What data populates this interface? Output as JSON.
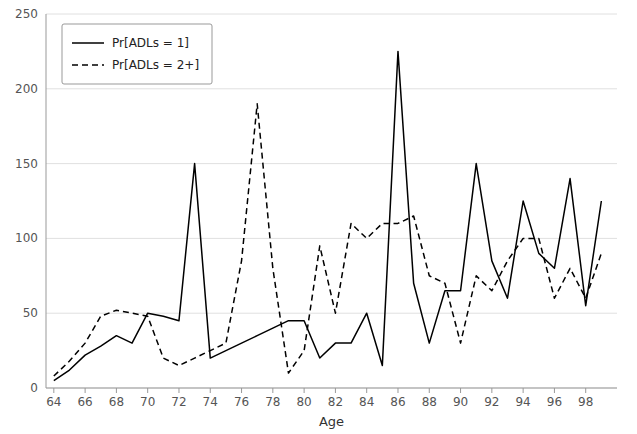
{
  "chart_data": {
    "type": "line",
    "x_label": "Age",
    "x": [
      64,
      65,
      66,
      67,
      68,
      69,
      70,
      71,
      72,
      73,
      74,
      75,
      76,
      77,
      78,
      79,
      80,
      81,
      82,
      83,
      84,
      85,
      86,
      87,
      88,
      89,
      90,
      91,
      92,
      93,
      94,
      95,
      96,
      97,
      98,
      99
    ],
    "series": [
      {
        "name": "Pr[ADLs = 1]",
        "color": "#000000",
        "line_style": "solid",
        "values": [
          5,
          12,
          22,
          28,
          35,
          30,
          50,
          48,
          45,
          150,
          20,
          25,
          30,
          35,
          40,
          45,
          45,
          20,
          30,
          30,
          50,
          15,
          225,
          70,
          30,
          65,
          65,
          150,
          85,
          60,
          125,
          90,
          80,
          140,
          55,
          125
        ]
      },
      {
        "name": "Pr[ADLs = 2+]",
        "color": "#000000",
        "line_style": "dashed",
        "values": [
          8,
          18,
          30,
          48,
          52,
          50,
          48,
          20,
          15,
          20,
          25,
          30,
          85,
          190,
          80,
          10,
          25,
          95,
          50,
          110,
          100,
          110,
          110,
          115,
          75,
          70,
          30,
          75,
          65,
          85,
          100,
          100,
          60,
          80,
          60,
          90
        ]
      }
    ],
    "xlim": [
      63.5,
      100.0
    ],
    "xticks": [
      64,
      66,
      68,
      70,
      72,
      74,
      76,
      78,
      80,
      82,
      84,
      86,
      88,
      90,
      92,
      94,
      96,
      98
    ],
    "ylim": [
      0,
      250
    ],
    "yticks": [
      0,
      50,
      100,
      150,
      200,
      250
    ],
    "grid": true,
    "legend": "upper left"
  }
}
